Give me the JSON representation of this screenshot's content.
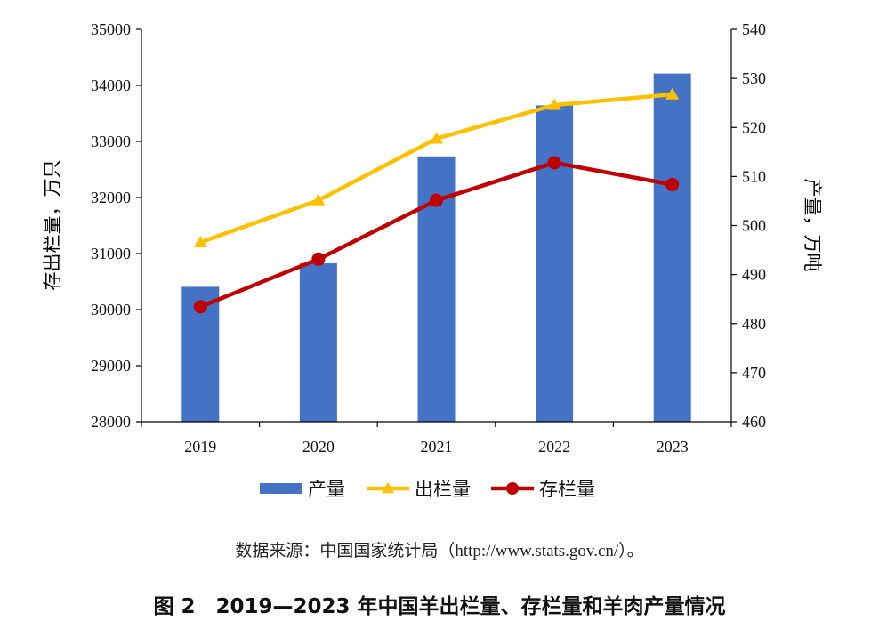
{
  "chart_data": {
    "type": "bar",
    "categories": [
      "2019",
      "2020",
      "2021",
      "2022",
      "2023"
    ],
    "series": [
      {
        "name": "产量",
        "kind": "bar",
        "axis": "right",
        "color": "#4472C4",
        "values": [
          487.5,
          492.3,
          514.1,
          524.5,
          531.0
        ]
      },
      {
        "name": "出栏量",
        "kind": "line",
        "axis": "left",
        "marker": "triangle",
        "color": "#FFC000",
        "values": [
          31200,
          31950,
          33050,
          33650,
          33840
        ]
      },
      {
        "name": "存栏量",
        "kind": "line",
        "axis": "left",
        "marker": "circle",
        "color": "#C00000",
        "values": [
          30050,
          30900,
          31950,
          32620,
          32230
        ]
      }
    ],
    "y_left": {
      "label": "存出栏量，万只",
      "range": [
        28000,
        35000
      ],
      "ticks": [
        "28000",
        "29000",
        "30000",
        "31000",
        "32000",
        "33000",
        "34000",
        "35000"
      ]
    },
    "y_right": {
      "label": "产量，万吨",
      "range": [
        460,
        540
      ],
      "ticks": [
        "460",
        "470",
        "480",
        "490",
        "500",
        "510",
        "520",
        "530",
        "540"
      ]
    },
    "legend_position": "bottom",
    "grid": false
  },
  "source_prefix": "数据来源：中国国家统计局（",
  "source_url": "http://www.stats.gov.cn/",
  "source_suffix": "）。",
  "caption": "图 2　2019—2023 年中国羊出栏量、存栏量和羊肉产量情况"
}
